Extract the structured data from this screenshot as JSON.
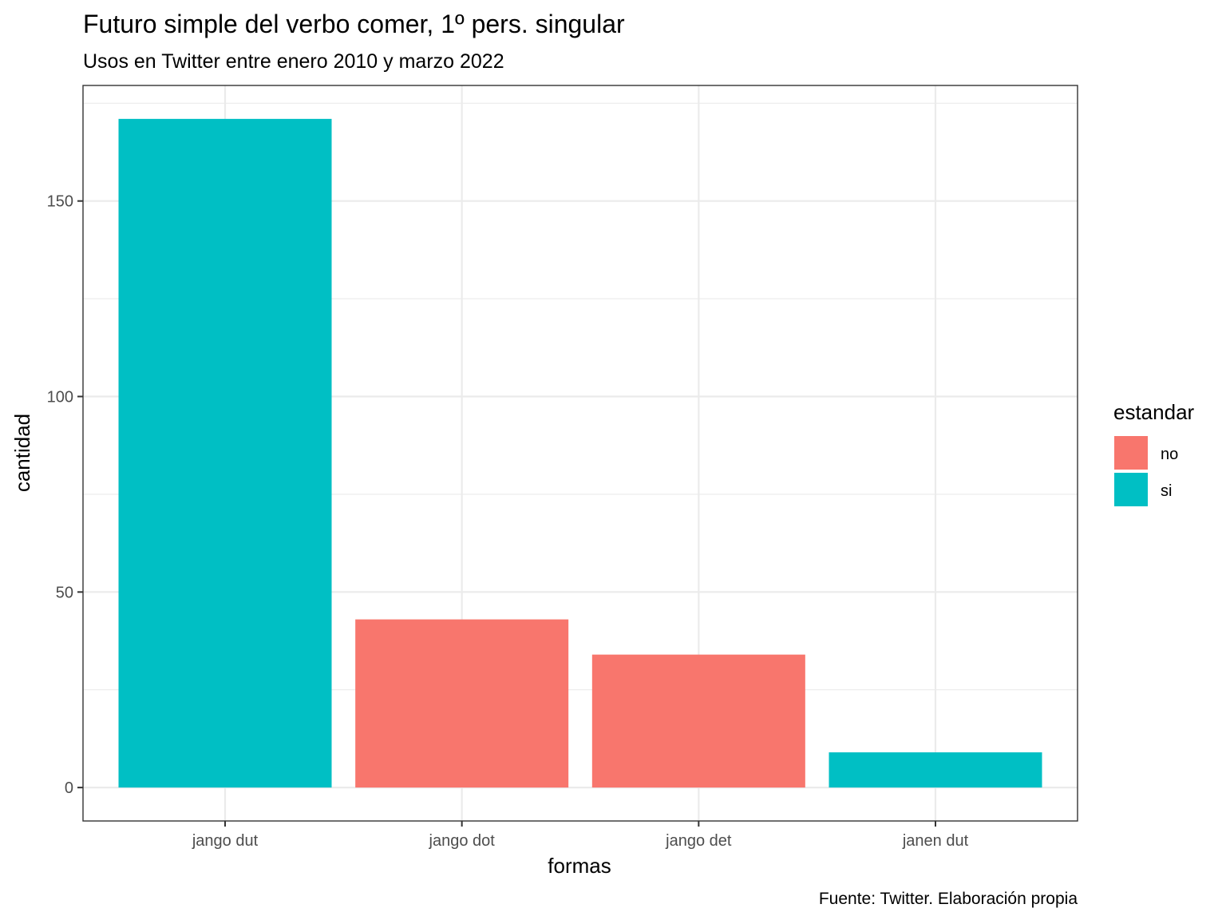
{
  "chart_data": {
    "type": "bar",
    "title": "Futuro simple del verbo comer, 1º pers. singular",
    "subtitle": "Usos en Twitter entre enero 2010 y marzo 2022",
    "caption": "Fuente: Twitter. Elaboración propia",
    "xlabel": "formas",
    "ylabel": "cantidad",
    "categories": [
      "jango dut",
      "jango dot",
      "jango det",
      "janen dut"
    ],
    "values": [
      171,
      43,
      34,
      9
    ],
    "fill_group": [
      "si",
      "no",
      "no",
      "si"
    ],
    "yticks": [
      0,
      50,
      100,
      150
    ],
    "ylim": [
      -8.55,
      179.55
    ],
    "grid": true,
    "legend": {
      "title": "estandar",
      "position": "right",
      "entries": [
        {
          "label": "no",
          "color": "#F8766D"
        },
        {
          "label": "si",
          "color": "#00BFC4"
        }
      ]
    }
  }
}
